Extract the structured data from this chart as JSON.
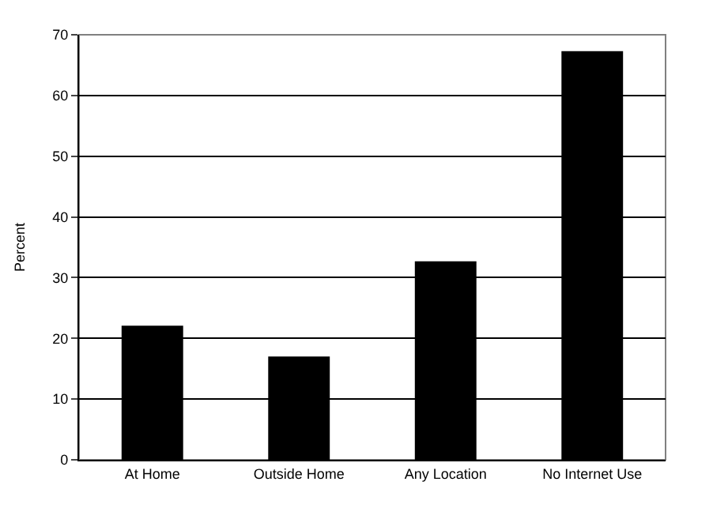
{
  "chart_data": {
    "type": "bar",
    "ylabel": "Percent",
    "categories": [
      "At Home",
      "Outside Home",
      "Any Location",
      "No Internet Use"
    ],
    "values": [
      22.1,
      17.0,
      32.7,
      67.3
    ],
    "color": "#000000",
    "ylim": [
      0,
      70
    ],
    "yticks": [
      0,
      10,
      20,
      30,
      40,
      50,
      60,
      70
    ],
    "grid": "y",
    "legend": false
  }
}
